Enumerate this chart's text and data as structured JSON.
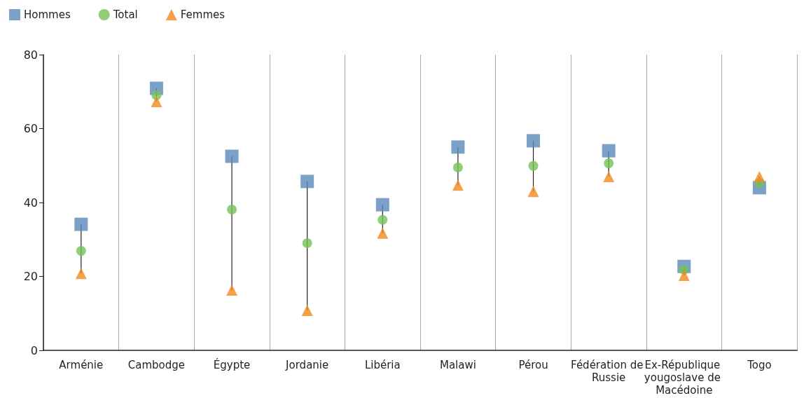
{
  "chart_data": {
    "type": "scatter",
    "categories": [
      "Arménie",
      "Cambodge",
      "Égypte",
      "Jordanie",
      "Libéria",
      "Malawi",
      "Pérou",
      "Fédération de Russie",
      "Ex-République yougoslave de Macédoine",
      "Togo"
    ],
    "series": [
      {
        "name": "Hommes",
        "color": "#5b8abc",
        "marker": "square",
        "values": [
          34.1,
          70.9,
          52.5,
          45.7,
          39.4,
          55.0,
          56.7,
          54.0,
          22.7,
          44.0
        ]
      },
      {
        "name": "Total",
        "color": "#76c256",
        "marker": "circle",
        "values": [
          26.9,
          69.0,
          38.1,
          29.0,
          35.3,
          49.5,
          49.9,
          50.6,
          21.8,
          45.3
        ]
      },
      {
        "name": "Femmes",
        "color": "#f28a1e",
        "marker": "triangle",
        "values": [
          20.8,
          67.3,
          16.3,
          10.8,
          31.7,
          44.7,
          43.0,
          47.0,
          20.3,
          47.0
        ]
      }
    ],
    "ylim": [
      0,
      80
    ],
    "yticks": [
      0,
      20,
      40,
      60,
      80
    ],
    "grid": "x",
    "legend": "top left"
  }
}
